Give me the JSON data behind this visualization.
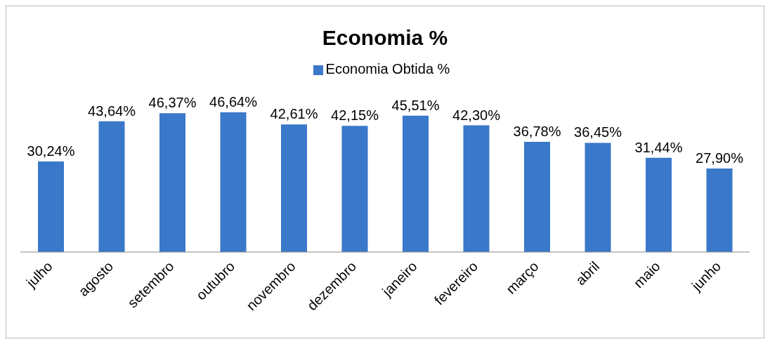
{
  "chart_data": {
    "type": "bar",
    "title": "Economia %",
    "categories": [
      "julho",
      "agosto",
      "setembro",
      "outubro",
      "novembro",
      "dezembro",
      "janeiro",
      "fevereiro",
      "março",
      "abril",
      "maio",
      "junho"
    ],
    "series": [
      {
        "name": "Economia Obtida %",
        "color": "#3a78c9",
        "values": [
          30.24,
          43.64,
          46.37,
          46.64,
          42.61,
          42.15,
          45.51,
          42.3,
          36.78,
          36.45,
          31.44,
          27.9
        ],
        "value_labels": [
          "30,24%",
          "43,64%",
          "46,37%",
          "46,64%",
          "42,61%",
          "42,15%",
          "45,51%",
          "42,30%",
          "36,78%",
          "36,45%",
          "31,44%",
          "27,90%"
        ]
      }
    ],
    "legend": "top",
    "grid": false
  }
}
